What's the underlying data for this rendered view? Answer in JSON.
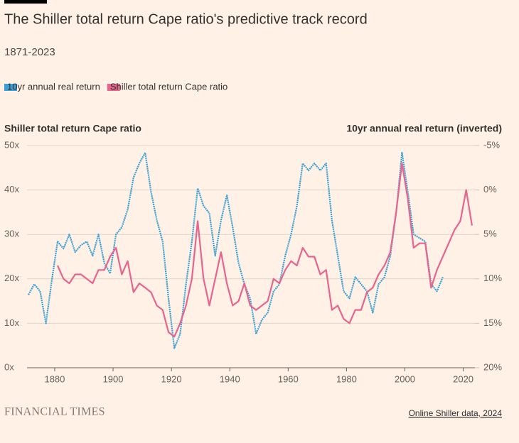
{
  "chart_data": {
    "type": "line",
    "title": "The Shiller total return Cape ratio's predictive track record",
    "subtitle": "1871-2023",
    "ylabel": "Shiller total return Cape ratio",
    "y2label": "10yr annual real return (inverted)",
    "source": "Online Shiller data, 2024",
    "brand": "FINANCIAL TIMES",
    "x": [
      1871,
      1873,
      1875,
      1877,
      1879,
      1881,
      1883,
      1885,
      1887,
      1889,
      1891,
      1893,
      1895,
      1897,
      1899,
      1901,
      1903,
      1905,
      1907,
      1909,
      1911,
      1913,
      1915,
      1917,
      1919,
      1921,
      1923,
      1925,
      1927,
      1929,
      1931,
      1933,
      1935,
      1937,
      1939,
      1941,
      1943,
      1945,
      1947,
      1949,
      1951,
      1953,
      1955,
      1957,
      1959,
      1961,
      1963,
      1965,
      1967,
      1969,
      1971,
      1973,
      1975,
      1977,
      1979,
      1981,
      1983,
      1985,
      1987,
      1989,
      1991,
      1993,
      1995,
      1997,
      1999,
      2001,
      2003,
      2005,
      2007,
      2009,
      2011,
      2013,
      2015,
      2017,
      2019,
      2021,
      2023
    ],
    "xlim": [
      1871,
      2024
    ],
    "xticks": [
      1880,
      1900,
      1920,
      1940,
      1960,
      1980,
      2000,
      2020
    ],
    "ylim": [
      0,
      50
    ],
    "yticks": [
      {
        "value": 0,
        "label": "0x"
      },
      {
        "value": 10,
        "label": "10x"
      },
      {
        "value": 20,
        "label": "20x"
      },
      {
        "value": 30,
        "label": "30x"
      },
      {
        "value": 40,
        "label": "40x"
      },
      {
        "value": 50,
        "label": "50x"
      }
    ],
    "y2lim": [
      20,
      -5
    ],
    "y2ticks": [
      {
        "value": -5,
        "label": "-5%"
      },
      {
        "value": 0,
        "label": "0%"
      },
      {
        "value": 5,
        "label": "5%"
      },
      {
        "value": 10,
        "label": "10%"
      },
      {
        "value": 15,
        "label": "15%"
      },
      {
        "value": 20,
        "label": "20%"
      }
    ],
    "grid": true,
    "legend": "top-left",
    "series": [
      {
        "name": "10yr annual real return",
        "color": "#3a9fd4",
        "axis": "y2",
        "values": [
          11.8,
          10.6,
          11.4,
          15,
          10.2,
          5.8,
          6.6,
          5,
          7,
          6.2,
          5.8,
          7.4,
          5,
          8.2,
          9.4,
          5,
          4.2,
          2.2,
          -1.4,
          -3,
          -4.2,
          0.2,
          3.4,
          5.8,
          12.2,
          17.8,
          16.2,
          10.6,
          5.8,
          -0.2,
          1.8,
          2.6,
          7.4,
          3.4,
          0.6,
          4.2,
          8.2,
          10.6,
          12.2,
          16.2,
          14.6,
          13.8,
          11.4,
          10.6,
          7.4,
          5,
          1.8,
          -3,
          -2.2,
          -3,
          -2.2,
          -3,
          3.4,
          7.4,
          11.4,
          12.2,
          9.8,
          10.6,
          11.4,
          13.8,
          10.6,
          9.8,
          7.4,
          2.6,
          -4.2,
          0.2,
          5,
          5.4,
          5.8,
          10.6,
          11.4,
          9.8,
          null,
          null,
          null,
          null,
          null
        ]
      },
      {
        "name": "Shiller total return Cape ratio",
        "color": "#e8648f",
        "values": [
          null,
          null,
          null,
          null,
          null,
          23,
          20,
          19,
          21,
          21,
          20,
          19,
          22,
          22,
          25,
          27,
          21,
          24,
          17,
          19,
          18,
          17,
          14,
          13,
          8,
          7,
          10,
          14,
          20,
          33,
          20,
          14,
          20,
          26,
          19,
          14,
          15,
          19,
          14,
          13,
          14,
          15,
          20,
          19,
          22,
          24,
          23,
          27,
          25,
          25,
          21,
          22,
          13,
          14,
          11,
          10,
          13,
          13,
          17,
          18,
          21,
          23,
          26,
          35,
          46,
          38,
          27,
          28,
          28,
          18,
          22,
          25,
          28,
          31,
          33,
          40,
          32
        ]
      }
    ]
  }
}
